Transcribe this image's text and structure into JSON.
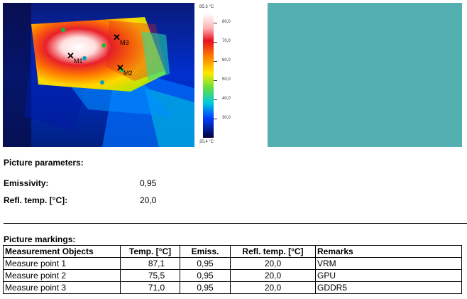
{
  "thermal": {
    "scale_max": "85,3 °C",
    "scale_min": "20,4 °C",
    "ticks": [
      "80,0",
      "70,0",
      "60,0",
      "50,0",
      "40,0",
      "30,0"
    ],
    "markers": [
      "M1",
      "M2",
      "M3"
    ]
  },
  "params": {
    "title": "Picture parameters:",
    "emissivity_label": "Emissivity:",
    "emissivity_value": "0,95",
    "refl_label": "Refl. temp. [°C]:",
    "refl_value": "20,0"
  },
  "markings": {
    "title": "Picture markings:",
    "headers": [
      "Measurement Objects",
      "Temp. [°C]",
      "Emiss.",
      "Refl. temp. [°C]",
      "Remarks"
    ],
    "rows": [
      [
        "Measure point 1",
        "87,1",
        "0,95",
        "20,0",
        "VRM"
      ],
      [
        "Measure point 2",
        "75,5",
        "0,95",
        "20,0",
        "GPU"
      ],
      [
        "Measure point 3",
        "71,0",
        "0,95",
        "20,0",
        "GDDR5"
      ]
    ]
  },
  "colors": {
    "visual_placeholder": "#53afb0"
  }
}
